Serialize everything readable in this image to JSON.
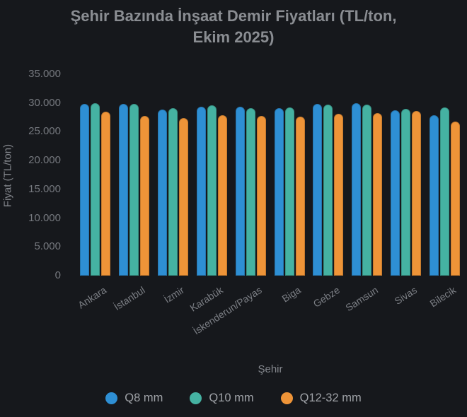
{
  "title": {
    "line1": "Şehir Bazında İnşaat Demir Fiyatları (TL/ton,",
    "line2": "Ekim 2025)"
  },
  "y_axis": {
    "title": "Fiyat (TL/ton)",
    "tick_labels": [
      "35.000",
      "30.000",
      "25.000",
      "20.000",
      "15.000",
      "10.000",
      "5.000",
      "0"
    ]
  },
  "x_axis": {
    "title": "Şehir"
  },
  "colors": {
    "background": "#16181c",
    "title_text": "#8a8d92",
    "axis_text": "#75787e",
    "q8": "#2e8fd4",
    "q10": "#45b2a2",
    "q12_32": "#ee9438"
  },
  "chart_data": {
    "type": "bar",
    "title": "Şehir Bazında İnşaat Demir Fiyatları (TL/ton, Ekim 2025)",
    "xlabel": "Şehir",
    "ylabel": "Fiyat (TL/ton)",
    "ylim": [
      0,
      35000
    ],
    "grid": false,
    "legend_position": "bottom",
    "categories": [
      "Ankara",
      "İstanbul",
      "İzmir",
      "Karabük",
      "İskenderun/Payas",
      "Biga",
      "Gebze",
      "Samsun",
      "Sivas",
      "Bilecik"
    ],
    "series": [
      {
        "name": "Q8 mm",
        "color": "#2e8fd4",
        "values": [
          29900,
          29900,
          28900,
          29350,
          29350,
          29150,
          29900,
          30000,
          28700,
          27900
        ]
      },
      {
        "name": "Q10 mm",
        "color": "#45b2a2",
        "values": [
          30000,
          29900,
          29050,
          29550,
          29150,
          29250,
          29700,
          29750,
          28950,
          29200
        ]
      },
      {
        "name": "Q12-32 mm",
        "color": "#ee9438",
        "values": [
          28500,
          27700,
          27400,
          27900,
          27700,
          27600,
          28100,
          28300,
          28650,
          26750
        ]
      }
    ]
  }
}
